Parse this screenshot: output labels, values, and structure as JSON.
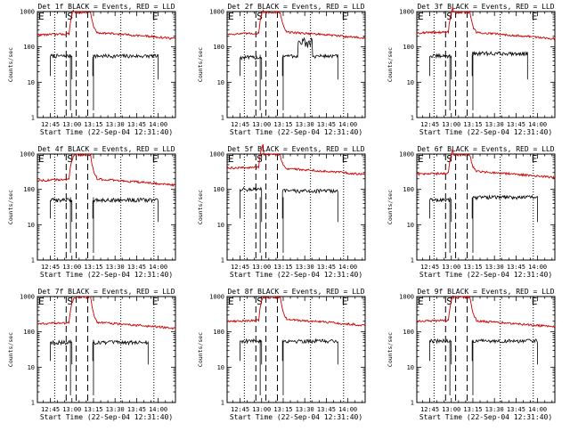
{
  "chart_data": [
    {
      "type": "line",
      "title": "Det 1f BLACK = Events, RED = LLD",
      "xlabel": "Start Time (22-Sep-04 12:31:40)",
      "ylabel": "Counts/sec",
      "yscale": "log",
      "ylim": [
        1,
        1000
      ],
      "xlim": [
        "12:36",
        "14:12"
      ],
      "x_tick_labels": [
        "12:45",
        "13:00",
        "13:15",
        "13:30",
        "13:45",
        "14:00"
      ],
      "y_tick_labels": [
        "1",
        "10",
        "100",
        "1000"
      ],
      "markers": [
        "E",
        "S",
        "E"
      ],
      "series": [
        {
          "name": "Events",
          "color": "#000000",
          "start": "12:45",
          "end": "14:00",
          "level_before": 55,
          "level_after": 55
        },
        {
          "name": "LLD",
          "color": "#cc0000",
          "start": "12:36",
          "end": "14:12",
          "level_before": 220,
          "level_after": 260
        }
      ]
    },
    {
      "type": "line",
      "title": "Det 2f BLACK = Events, RED = LLD",
      "xlabel": "Start Time (22-Sep-04 12:31:40)",
      "ylabel": "Counts/sec",
      "yscale": "log",
      "ylim": [
        1,
        1000
      ],
      "xlim": [
        "12:36",
        "14:12"
      ],
      "x_tick_labels": [
        "12:45",
        "13:00",
        "13:15",
        "13:30",
        "13:45",
        "14:00"
      ],
      "y_tick_labels": [
        "1",
        "10",
        "100",
        "1000"
      ],
      "markers": [
        "E",
        "S",
        "E"
      ],
      "series": [
        {
          "name": "Events",
          "color": "#000000",
          "start": "12:45",
          "end": "13:53",
          "level_before": 50,
          "level_after": 55
        },
        {
          "name": "LLD",
          "color": "#cc0000",
          "start": "12:36",
          "end": "14:12",
          "level_before": 230,
          "level_after": 270
        }
      ]
    },
    {
      "type": "line",
      "title": "Det 3f BLACK = Events, RED = LLD",
      "xlabel": "Start Time (22-Sep-04 12:31:40)",
      "ylabel": "Counts/sec",
      "yscale": "log",
      "ylim": [
        1,
        1000
      ],
      "xlim": [
        "12:36",
        "14:12"
      ],
      "x_tick_labels": [
        "12:45",
        "13:00",
        "13:15",
        "13:30",
        "13:45",
        "14:00"
      ],
      "y_tick_labels": [
        "1",
        "10",
        "100",
        "1000"
      ],
      "markers": [
        "E",
        "S",
        "E"
      ],
      "series": [
        {
          "name": "Events",
          "color": "#000000",
          "start": "12:45",
          "end": "13:53",
          "level_before": 55,
          "level_after": 65
        },
        {
          "name": "LLD",
          "color": "#cc0000",
          "start": "12:36",
          "end": "14:12",
          "level_before": 250,
          "level_after": 260
        }
      ]
    },
    {
      "type": "line",
      "title": "Det 4f BLACK = Events, RED = LLD",
      "xlabel": "Start Time (22-Sep-04 12:31:40)",
      "ylabel": "Counts/sec",
      "yscale": "log",
      "ylim": [
        1,
        1000
      ],
      "xlim": [
        "12:36",
        "14:12"
      ],
      "x_tick_labels": [
        "12:45",
        "13:00",
        "13:15",
        "13:30",
        "13:45",
        "14:00"
      ],
      "y_tick_labels": [
        "1",
        "10",
        "100",
        "1000"
      ],
      "markers": [
        "E",
        "S",
        "E"
      ],
      "series": [
        {
          "name": "Events",
          "color": "#000000",
          "start": "12:45",
          "end": "14:00",
          "level_before": 50,
          "level_after": 50
        },
        {
          "name": "LLD",
          "color": "#cc0000",
          "start": "12:36",
          "end": "14:12",
          "level_before": 180,
          "level_after": 200
        }
      ]
    },
    {
      "type": "line",
      "title": "Det 5f BLACK = Events, RED = LLD",
      "xlabel": "Start Time (22-Sep-04 12:31:40)",
      "ylabel": "Counts/sec",
      "yscale": "log",
      "ylim": [
        1,
        1000
      ],
      "xlim": [
        "12:36",
        "14:12"
      ],
      "x_tick_labels": [
        "12:45",
        "13:00",
        "13:15",
        "13:30",
        "13:45",
        "14:00"
      ],
      "y_tick_labels": [
        "1",
        "10",
        "100",
        "1000"
      ],
      "markers": [
        "E",
        "S",
        "E"
      ],
      "series": [
        {
          "name": "Events",
          "color": "#000000",
          "start": "12:45",
          "end": "13:53",
          "level_before": 100,
          "level_after": 90
        },
        {
          "name": "LLD",
          "color": "#cc0000",
          "start": "12:36",
          "end": "14:12",
          "level_before": 400,
          "level_after": 400
        }
      ]
    },
    {
      "type": "line",
      "title": "Det 6f BLACK = Events, RED = LLD",
      "xlabel": "Start Time (22-Sep-04 12:31:40)",
      "ylabel": "Counts/sec",
      "yscale": "log",
      "ylim": [
        1,
        1000
      ],
      "xlim": [
        "12:36",
        "14:12"
      ],
      "x_tick_labels": [
        "12:45",
        "13:00",
        "13:15",
        "13:30",
        "13:45",
        "14:00"
      ],
      "y_tick_labels": [
        "1",
        "10",
        "100",
        "1000"
      ],
      "markers": [
        "E",
        "S",
        "E"
      ],
      "series": [
        {
          "name": "Events",
          "color": "#000000",
          "start": "12:45",
          "end": "14:00",
          "level_before": 50,
          "level_after": 60
        },
        {
          "name": "LLD",
          "color": "#cc0000",
          "start": "12:36",
          "end": "14:12",
          "level_before": 270,
          "level_after": 330
        }
      ]
    },
    {
      "type": "line",
      "title": "Det 7f BLACK = Events, RED = LLD",
      "xlabel": "Start Time (22-Sep-04 12:31:40)",
      "ylabel": "Counts/sec",
      "yscale": "log",
      "ylim": [
        1,
        1000
      ],
      "xlim": [
        "12:36",
        "14:12"
      ],
      "x_tick_labels": [
        "12:45",
        "13:00",
        "13:15",
        "13:30",
        "13:45",
        "14:00"
      ],
      "y_tick_labels": [
        "1",
        "10",
        "100",
        "1000"
      ],
      "markers": [
        "E",
        "S",
        "E"
      ],
      "series": [
        {
          "name": "Events",
          "color": "#000000",
          "start": "12:45",
          "end": "13:53",
          "level_before": 50,
          "level_after": 50
        },
        {
          "name": "LLD",
          "color": "#cc0000",
          "start": "12:36",
          "end": "14:12",
          "level_before": 170,
          "level_after": 190
        }
      ]
    },
    {
      "type": "line",
      "title": "Det 8f BLACK = Events, RED = LLD",
      "xlabel": "Start Time (22-Sep-04 12:31:40)",
      "ylabel": "Counts/sec",
      "yscale": "log",
      "ylim": [
        1,
        1000
      ],
      "xlim": [
        "12:36",
        "14:12"
      ],
      "x_tick_labels": [
        "12:45",
        "13:00",
        "13:15",
        "13:30",
        "13:45",
        "14:00"
      ],
      "y_tick_labels": [
        "1",
        "10",
        "100",
        "1000"
      ],
      "markers": [
        "E",
        "S",
        "E"
      ],
      "series": [
        {
          "name": "Events",
          "color": "#000000",
          "start": "12:45",
          "end": "13:53",
          "level_before": 55,
          "level_after": 55
        },
        {
          "name": "LLD",
          "color": "#cc0000",
          "start": "12:36",
          "end": "14:12",
          "level_before": 200,
          "level_after": 230
        }
      ]
    },
    {
      "type": "line",
      "title": "Det 9f BLACK = Events, RED = LLD",
      "xlabel": "Start Time (22-Sep-04 12:31:40)",
      "ylabel": "Counts/sec",
      "yscale": "log",
      "ylim": [
        1,
        1000
      ],
      "xlim": [
        "12:36",
        "14:12"
      ],
      "x_tick_labels": [
        "12:45",
        "13:00",
        "13:15",
        "13:30",
        "13:45",
        "14:00"
      ],
      "y_tick_labels": [
        "1",
        "10",
        "100",
        "1000"
      ],
      "markers": [
        "E",
        "S",
        "E"
      ],
      "series": [
        {
          "name": "Events",
          "color": "#000000",
          "start": "12:45",
          "end": "14:00",
          "level_before": 55,
          "level_after": 55
        },
        {
          "name": "LLD",
          "color": "#cc0000",
          "start": "12:36",
          "end": "14:12",
          "level_before": 200,
          "level_after": 210
        }
      ]
    }
  ]
}
